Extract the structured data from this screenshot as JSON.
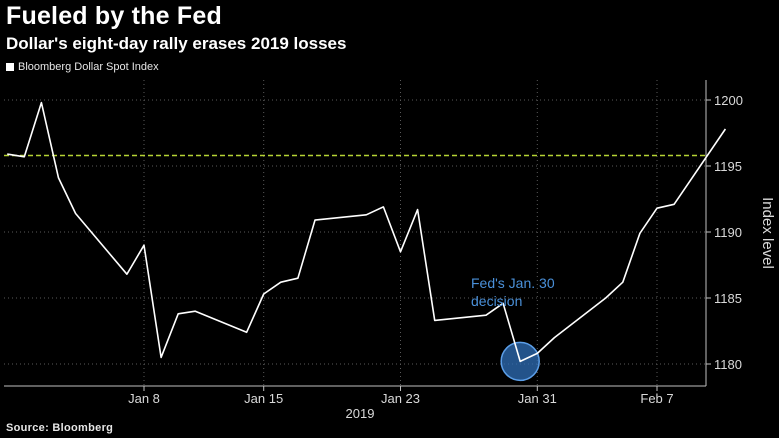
{
  "header": {
    "title": "Fueled by the Fed",
    "subtitle": "Dollar's eight-day rally erases 2019 losses"
  },
  "legend": {
    "series_label": "Bloomberg Dollar Spot Index"
  },
  "footer": {
    "source": "Source: Bloomberg"
  },
  "colors": {
    "background": "#000000",
    "line": "#ffffff",
    "reference_line": "#b5d334",
    "annotation": "#4a90d9",
    "grid": "#5a5a5a"
  },
  "chart_data": {
    "type": "line",
    "title": "Fueled by the Fed",
    "subtitle": "Dollar's eight-day rally erases 2019 losses",
    "ylabel": "Index level",
    "year_label": "2019",
    "ylim": [
      1178,
      1202
    ],
    "y_ticks": [
      1180,
      1185,
      1190,
      1195,
      1200
    ],
    "x_ticks": [
      {
        "date": "2019-01-08",
        "label": "Jan 8"
      },
      {
        "date": "2019-01-15",
        "label": "Jan 15"
      },
      {
        "date": "2019-01-23",
        "label": "Jan 23"
      },
      {
        "date": "2019-01-31",
        "label": "Jan 31"
      },
      {
        "date": "2019-02-07",
        "label": "Feb 7"
      }
    ],
    "grid": true,
    "legend_position": "top-left",
    "reference_line": {
      "y": 1195.8,
      "style": "dashed"
    },
    "annotation": {
      "text_line1": "Fed's Jan. 30",
      "text_line2": "decision",
      "date": "2019-01-30",
      "value": 1180.2
    },
    "series": [
      {
        "name": "Bloomberg Dollar Spot Index",
        "points": [
          {
            "date": "2018-12-31",
            "value": 1195.9
          },
          {
            "date": "2019-01-01",
            "value": 1195.7
          },
          {
            "date": "2019-01-02",
            "value": 1199.8
          },
          {
            "date": "2019-01-03",
            "value": 1194.1
          },
          {
            "date": "2019-01-04",
            "value": 1191.4
          },
          {
            "date": "2019-01-07",
            "value": 1186.8
          },
          {
            "date": "2019-01-08",
            "value": 1189.0
          },
          {
            "date": "2019-01-09",
            "value": 1180.5
          },
          {
            "date": "2019-01-10",
            "value": 1183.8
          },
          {
            "date": "2019-01-11",
            "value": 1184.0
          },
          {
            "date": "2019-01-14",
            "value": 1182.4
          },
          {
            "date": "2019-01-15",
            "value": 1185.3
          },
          {
            "date": "2019-01-16",
            "value": 1186.2
          },
          {
            "date": "2019-01-17",
            "value": 1186.5
          },
          {
            "date": "2019-01-18",
            "value": 1190.9
          },
          {
            "date": "2019-01-21",
            "value": 1191.3
          },
          {
            "date": "2019-01-22",
            "value": 1191.9
          },
          {
            "date": "2019-01-23",
            "value": 1188.5
          },
          {
            "date": "2019-01-24",
            "value": 1191.7
          },
          {
            "date": "2019-01-25",
            "value": 1183.3
          },
          {
            "date": "2019-01-28",
            "value": 1183.7
          },
          {
            "date": "2019-01-29",
            "value": 1184.6
          },
          {
            "date": "2019-01-30",
            "value": 1180.2
          },
          {
            "date": "2019-01-31",
            "value": 1180.8
          },
          {
            "date": "2019-02-01",
            "value": 1182.0
          },
          {
            "date": "2019-02-04",
            "value": 1185.0
          },
          {
            "date": "2019-02-05",
            "value": 1186.2
          },
          {
            "date": "2019-02-06",
            "value": 1189.9
          },
          {
            "date": "2019-02-07",
            "value": 1191.8
          },
          {
            "date": "2019-02-08",
            "value": 1192.1
          },
          {
            "date": "2019-02-11",
            "value": 1197.8
          }
        ]
      }
    ]
  }
}
